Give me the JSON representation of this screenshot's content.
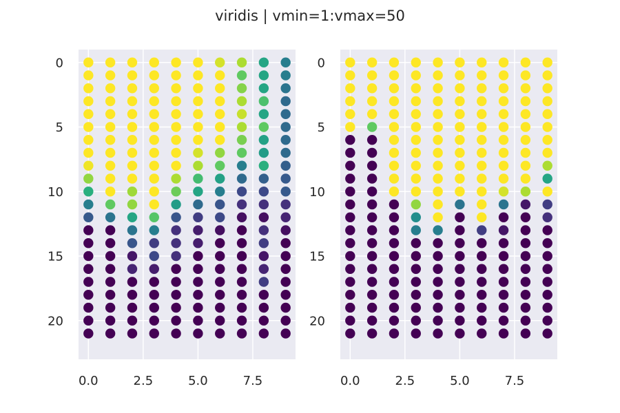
{
  "chart_data": {
    "title": "viridis | vmin=1:vmax=50",
    "type": "scatter",
    "colormap": "viridis",
    "vmin": 1,
    "vmax": 50,
    "grid": true,
    "background": "#EAEAF2",
    "y_inverted": true,
    "panels": [
      {
        "xlim": [
          -0.45,
          9.45
        ],
        "ylim": [
          23,
          -1
        ],
        "x_ticks": [
          "0.0",
          "2.5",
          "5.0",
          "7.5"
        ],
        "x_tick_values": [
          0,
          2.5,
          5,
          7.5
        ],
        "y_ticks": [
          "0",
          "5",
          "10",
          "15",
          "20"
        ],
        "y_tick_values": [
          0,
          5,
          10,
          15,
          20
        ],
        "values": [
          [
            50,
            50,
            50,
            50,
            50,
            50,
            47,
            44,
            30,
            22
          ],
          [
            50,
            50,
            50,
            50,
            50,
            50,
            50,
            38,
            30,
            22
          ],
          [
            50,
            50,
            50,
            50,
            50,
            50,
            50,
            41,
            30,
            20
          ],
          [
            50,
            50,
            50,
            50,
            50,
            50,
            50,
            44,
            36,
            18
          ],
          [
            50,
            50,
            50,
            50,
            50,
            50,
            50,
            46,
            30,
            18
          ],
          [
            50,
            50,
            50,
            50,
            50,
            50,
            50,
            44,
            38,
            18
          ],
          [
            50,
            50,
            50,
            50,
            50,
            50,
            50,
            40,
            29,
            18
          ],
          [
            50,
            50,
            50,
            50,
            50,
            47,
            42,
            38,
            28,
            18
          ],
          [
            49,
            50,
            50,
            50,
            50,
            44,
            38,
            22,
            32,
            16
          ],
          [
            42,
            50,
            50,
            50,
            44,
            35,
            29,
            18,
            16,
            15
          ],
          [
            32,
            50,
            43,
            50,
            39,
            30,
            22,
            12,
            12,
            15
          ],
          [
            22,
            38,
            42,
            50,
            28,
            18,
            14,
            8,
            8,
            8
          ],
          [
            15,
            20,
            30,
            37,
            14,
            10,
            12,
            3,
            3,
            6
          ],
          [
            1,
            1,
            20,
            22,
            8,
            5,
            3,
            1,
            8,
            3
          ],
          [
            1,
            1,
            14,
            10,
            8,
            5,
            1,
            1,
            10,
            1
          ],
          [
            1,
            1,
            4,
            12,
            8,
            1,
            1,
            1,
            4,
            1
          ],
          [
            1,
            1,
            6,
            5,
            1,
            1,
            1,
            1,
            6,
            1
          ],
          [
            1,
            1,
            1,
            1,
            1,
            1,
            1,
            1,
            10,
            1
          ],
          [
            1,
            1,
            1,
            1,
            1,
            1,
            1,
            1,
            1,
            1
          ],
          [
            1,
            1,
            1,
            1,
            1,
            1,
            1,
            1,
            1,
            1
          ],
          [
            1,
            1,
            1,
            1,
            1,
            1,
            1,
            1,
            1,
            1
          ],
          [
            1,
            1,
            1,
            1,
            1,
            1,
            1,
            1,
            1,
            1
          ]
        ]
      },
      {
        "xlim": [
          -0.45,
          9.45
        ],
        "ylim": [
          23,
          -1
        ],
        "x_ticks": [
          "0.0",
          "2.5",
          "5.0",
          "7.5"
        ],
        "x_tick_values": [
          0,
          2.5,
          5,
          7.5
        ],
        "y_ticks": [
          "0",
          "5",
          "10",
          "15",
          "20"
        ],
        "y_tick_values": [
          0,
          5,
          10,
          15,
          20
        ],
        "values": [
          [
            50,
            50,
            50,
            50,
            50,
            50,
            50,
            50,
            50,
            50
          ],
          [
            50,
            50,
            50,
            50,
            50,
            50,
            50,
            50,
            50,
            50
          ],
          [
            50,
            50,
            50,
            50,
            50,
            50,
            50,
            50,
            50,
            50
          ],
          [
            50,
            50,
            50,
            50,
            50,
            50,
            50,
            50,
            50,
            50
          ],
          [
            50,
            50,
            50,
            50,
            50,
            50,
            50,
            50,
            50,
            50
          ],
          [
            50,
            38,
            50,
            50,
            50,
            50,
            50,
            50,
            50,
            50
          ],
          [
            1,
            1,
            50,
            50,
            50,
            50,
            50,
            50,
            50,
            50
          ],
          [
            1,
            1,
            50,
            50,
            50,
            50,
            50,
            50,
            50,
            50
          ],
          [
            1,
            1,
            50,
            50,
            50,
            50,
            50,
            50,
            50,
            44
          ],
          [
            1,
            1,
            50,
            50,
            50,
            50,
            50,
            50,
            50,
            30
          ],
          [
            1,
            1,
            50,
            50,
            50,
            50,
            50,
            47,
            44,
            50
          ],
          [
            1,
            1,
            1,
            42,
            50,
            20,
            50,
            20,
            4,
            10
          ],
          [
            1,
            1,
            1,
            25,
            50,
            1,
            50,
            1,
            1,
            8
          ],
          [
            1,
            1,
            1,
            22,
            22,
            1,
            10,
            4,
            1,
            1
          ],
          [
            1,
            1,
            1,
            1,
            1,
            1,
            1,
            1,
            1,
            1
          ],
          [
            1,
            1,
            1,
            1,
            1,
            1,
            1,
            1,
            1,
            1
          ],
          [
            1,
            1,
            1,
            1,
            1,
            1,
            1,
            1,
            1,
            1
          ],
          [
            1,
            1,
            1,
            1,
            1,
            1,
            1,
            1,
            1,
            1
          ],
          [
            1,
            1,
            1,
            1,
            1,
            1,
            1,
            1,
            1,
            1
          ],
          [
            1,
            1,
            1,
            1,
            1,
            1,
            1,
            1,
            1,
            1
          ],
          [
            1,
            1,
            1,
            1,
            1,
            1,
            1,
            1,
            1,
            1
          ],
          [
            1,
            1,
            1,
            1,
            1,
            1,
            1,
            1,
            1,
            1
          ]
        ]
      }
    ]
  }
}
